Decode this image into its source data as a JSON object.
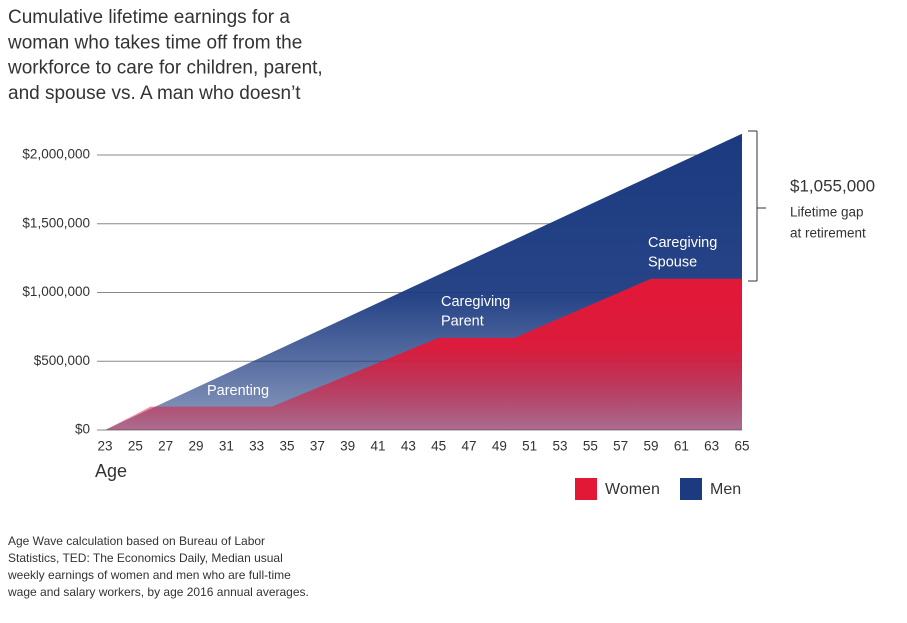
{
  "chart_data": {
    "type": "area",
    "title_lines": [
      "Cumulative lifetime earnings for a",
      "woman who takes time off from the",
      "workforce to care for children, parent,",
      "and spouse vs. A man who doesn’t"
    ],
    "x_label": "Age",
    "x": [
      23,
      26,
      34,
      45,
      50,
      59,
      65
    ],
    "series": [
      {
        "name": "Men",
        "color": "#1b3a80",
        "values": [
          0,
          154000,
          564000,
          1129000,
          1385000,
          1847000,
          2155000
        ]
      },
      {
        "name": "Women",
        "color": "#e31837",
        "values": [
          0,
          170000,
          170000,
          670000,
          670000,
          1100000,
          1100000
        ]
      }
    ],
    "xlim": [
      23,
      65
    ],
    "xticks": [
      23,
      25,
      27,
      29,
      31,
      33,
      35,
      37,
      39,
      41,
      43,
      45,
      47,
      49,
      51,
      53,
      55,
      57,
      59,
      61,
      63,
      65
    ],
    "ylim": [
      0,
      2200000
    ],
    "yticks": [
      {
        "value": 0,
        "label": "$0"
      },
      {
        "value": 500000,
        "label": "$500,000"
      },
      {
        "value": 1000000,
        "label": "$1,000,000"
      },
      {
        "value": 1500000,
        "label": "$1,500,000"
      },
      {
        "value": 2000000,
        "label": "$2,000,000"
      }
    ],
    "grid": true,
    "legend": "bottom-right",
    "annotations": [
      {
        "lines": [
          "Parenting"
        ]
      },
      {
        "lines": [
          "Caregiving",
          "Parent"
        ]
      },
      {
        "lines": [
          "Caregiving",
          "Spouse"
        ]
      }
    ],
    "gap": {
      "value": 1055000,
      "label": "$1,055,000",
      "lines": [
        "Lifetime gap",
        "at retirement"
      ]
    },
    "source_lines": [
      "Age Wave calculation based on Bureau of Labor",
      "Statistics, TED: The Economics Daily, Median usual",
      "weekly earnings of women and men who are full-time",
      "wage and salary workers, by age 2016 annual averages."
    ]
  }
}
